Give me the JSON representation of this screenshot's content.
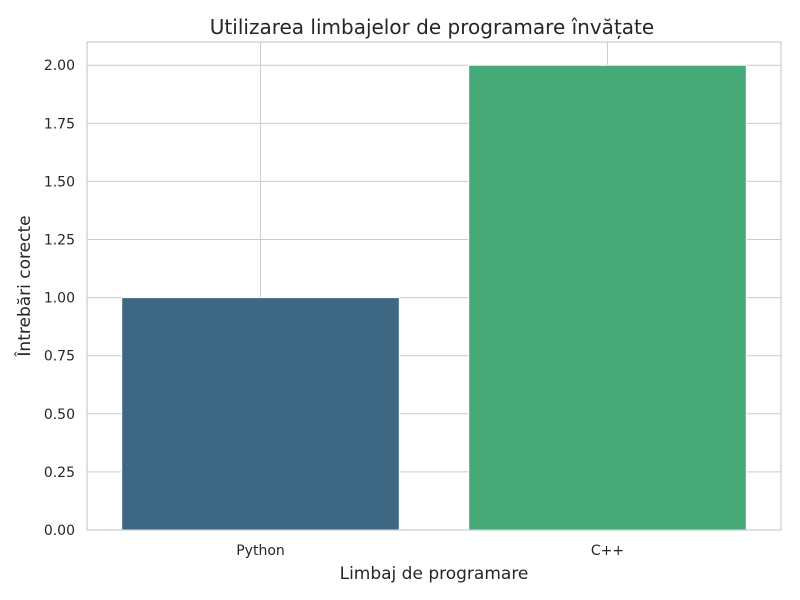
{
  "chart_data": {
    "type": "bar",
    "title": "Utilizarea limbajelor de programare învățate",
    "xlabel": "Limbaj de programare",
    "ylabel": "Întrebări corecte",
    "categories": [
      "Python",
      "C++"
    ],
    "values": [
      1,
      2
    ],
    "colors": [
      "#3e6783",
      "#46a978"
    ],
    "ylim": [
      0,
      2.1
    ],
    "yticks": [
      "0.00",
      "0.25",
      "0.50",
      "0.75",
      "1.00",
      "1.25",
      "1.50",
      "1.75",
      "2.00"
    ],
    "grid": true,
    "legend": "none"
  }
}
